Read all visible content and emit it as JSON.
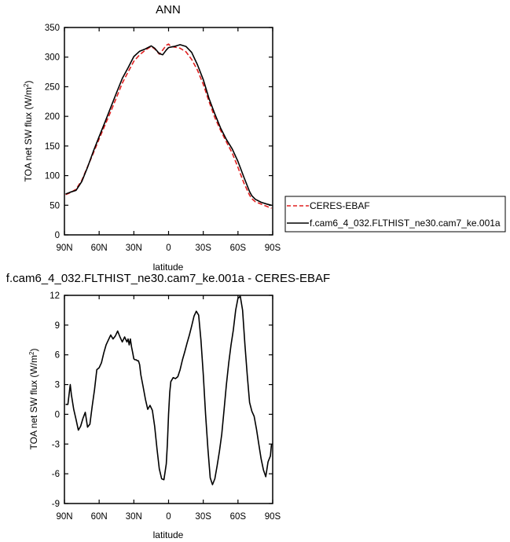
{
  "chart_data": [
    {
      "type": "line",
      "title": "ANN",
      "xlabel": "latitude",
      "ylabel": "TOA net SW flux (W/m²)",
      "ylabel_main": "TOA net SW flux (W/m",
      "ylabel_sup": "2",
      "ylabel_tail": ")",
      "xlim": [
        90,
        -90
      ],
      "ylim": [
        0,
        350
      ],
      "xticks": [
        90,
        60,
        30,
        0,
        -30,
        -60,
        -90
      ],
      "xtick_labels": [
        "90N",
        "60N",
        "30N",
        "0",
        "30S",
        "60S",
        "90S"
      ],
      "yticks": [
        0,
        50,
        100,
        150,
        200,
        250,
        300,
        350
      ],
      "ytick_labels": [
        "0",
        "50",
        "100",
        "150",
        "200",
        "250",
        "300",
        "350"
      ],
      "legend_position": "outside-right",
      "series": [
        {
          "name": "CERES-EBAF",
          "color": "#e02020",
          "dash": "dashed",
          "x": [
            89,
            85,
            80,
            75,
            70,
            65,
            60,
            55,
            50,
            45,
            40,
            35,
            30,
            25,
            20,
            15,
            12,
            8,
            5,
            2,
            0,
            -2,
            -5,
            -10,
            -15,
            -20,
            -25,
            -30,
            -35,
            -40,
            -45,
            -50,
            -55,
            -60,
            -65,
            -70,
            -72,
            -75,
            -80,
            -85,
            -89
          ],
          "y": [
            68,
            71,
            77,
            92,
            115,
            138,
            162,
            185,
            208,
            232,
            256,
            275,
            293,
            304,
            312,
            318,
            314,
            305,
            312,
            320,
            322,
            318,
            317,
            315,
            309,
            296,
            278,
            254,
            225,
            198,
            176,
            157,
            138,
            114,
            88,
            67,
            61,
            56,
            52,
            48,
            45
          ]
        },
        {
          "name": "f.cam6_4_032.FLTHIST_ne30.cam7_ke.001a",
          "color": "#000000",
          "dash": "solid",
          "x": [
            89,
            85,
            80,
            75,
            70,
            65,
            60,
            55,
            50,
            45,
            40,
            35,
            30,
            25,
            20,
            15,
            12,
            8,
            5,
            2,
            0,
            -2,
            -5,
            -10,
            -15,
            -20,
            -25,
            -30,
            -35,
            -40,
            -45,
            -50,
            -55,
            -60,
            -65,
            -70,
            -72,
            -75,
            -80,
            -85,
            -89
          ],
          "y": [
            69,
            72,
            75,
            90,
            114,
            141,
            166,
            190,
            215,
            240,
            264,
            282,
            301,
            310,
            314,
            319,
            315,
            306,
            304,
            312,
            316,
            317,
            318,
            321,
            318,
            308,
            287,
            262,
            230,
            204,
            180,
            161,
            145,
            124,
            98,
            73,
            66,
            60,
            55,
            52,
            50
          ]
        }
      ]
    },
    {
      "type": "line",
      "title": "f.cam6_4_032.FLTHIST_ne30.cam7_ke.001a - CERES-EBAF",
      "xlabel": "latitude",
      "ylabel": "TOA net SW flux (W/m²)",
      "ylabel_main": "TOA net SW flux (W/m",
      "ylabel_sup": "2",
      "ylabel_tail": ")",
      "xlim": [
        90,
        -90
      ],
      "ylim": [
        -9,
        12
      ],
      "xticks": [
        90,
        60,
        30,
        0,
        -30,
        -60,
        -90
      ],
      "xtick_labels": [
        "90N",
        "60N",
        "30N",
        "0",
        "30S",
        "60S",
        "90S"
      ],
      "yticks": [
        -9,
        -6,
        -3,
        0,
        3,
        6,
        9,
        12
      ],
      "ytick_labels": [
        "-9",
        "-6",
        "-3",
        "0",
        "3",
        "6",
        "9",
        "12"
      ],
      "series": [
        {
          "color": "#000000",
          "x": [
            89,
            87,
            85,
            84,
            82,
            80,
            78,
            76,
            74,
            72,
            70,
            68,
            66,
            64,
            62,
            60,
            58,
            56,
            54,
            52,
            50,
            48,
            46,
            44,
            42,
            40,
            38,
            36,
            35,
            34,
            33,
            32,
            31,
            30,
            29,
            28,
            27,
            26,
            25,
            24,
            22,
            20,
            18,
            16,
            14,
            12,
            10,
            8,
            6,
            4,
            2,
            1,
            0,
            -1,
            -2,
            -4,
            -6,
            -8,
            -10,
            -12,
            -14,
            -16,
            -18,
            -20,
            -22,
            -24,
            -26,
            -28,
            -30,
            -32,
            -34,
            -36,
            -38,
            -40,
            -42,
            -44,
            -46,
            -48,
            -50,
            -52,
            -54,
            -56,
            -58,
            -60,
            -62,
            -64,
            -66,
            -68,
            -70,
            -72,
            -74,
            -76,
            -78,
            -80,
            -82,
            -84,
            -86,
            -88,
            -89
          ],
          "y": [
            1.0,
            1.0,
            3.0,
            2.0,
            0.5,
            -0.5,
            -1.6,
            -1.2,
            -0.4,
            0.2,
            -1.3,
            -1.0,
            0.8,
            2.5,
            4.5,
            4.7,
            5.2,
            6.2,
            7.0,
            7.5,
            8.0,
            7.6,
            7.9,
            8.4,
            7.8,
            7.3,
            7.8,
            7.3,
            7.6,
            7.0,
            7.6,
            6.8,
            6.2,
            5.6,
            5.5,
            5.5,
            5.4,
            5.4,
            5.0,
            4.0,
            2.8,
            1.5,
            0.5,
            0.9,
            0.4,
            -1.2,
            -3.5,
            -5.5,
            -6.5,
            -6.6,
            -5.0,
            -3.0,
            0.0,
            2.2,
            3.3,
            3.7,
            3.6,
            3.8,
            4.5,
            5.5,
            6.3,
            7.2,
            8.0,
            8.9,
            9.9,
            10.4,
            10.0,
            7.5,
            4.0,
            0.0,
            -3.5,
            -6.4,
            -7.1,
            -6.5,
            -5.2,
            -3.7,
            -2.0,
            0.5,
            3.0,
            5.2,
            7.0,
            8.5,
            10.5,
            11.7,
            11.9,
            10.5,
            7.0,
            4.0,
            1.2,
            0.3,
            -0.2,
            -1.5,
            -3.0,
            -4.5,
            -5.6,
            -6.3,
            -4.8,
            -4.2,
            -3.0
          ]
        }
      ]
    }
  ],
  "legend": {
    "items": [
      {
        "label": "CERES-EBAF",
        "color": "#e02020",
        "dash": "dashed"
      },
      {
        "label": "f.cam6_4_032.FLTHIST_ne30.cam7_ke.001a",
        "color": "#000000",
        "dash": "solid"
      }
    ]
  }
}
